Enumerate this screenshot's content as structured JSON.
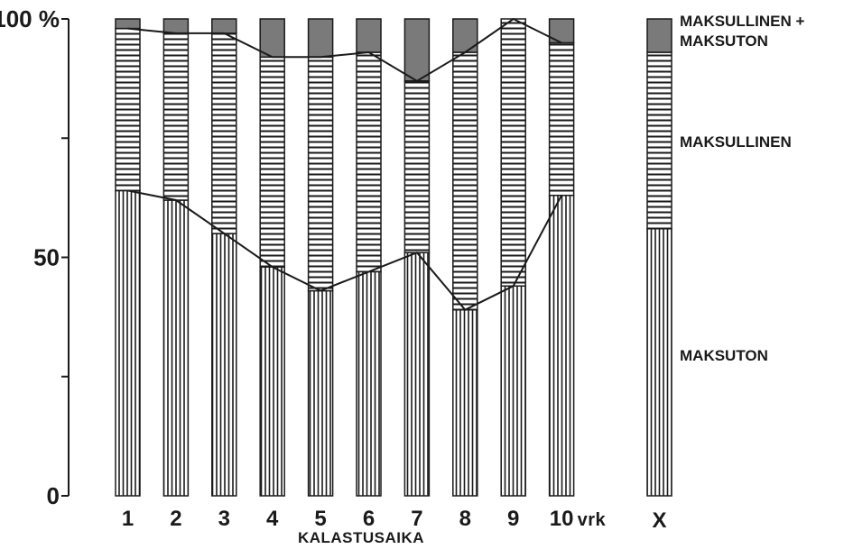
{
  "chart_data": {
    "type": "bar",
    "stacked": true,
    "categories": [
      "1",
      "2",
      "3",
      "4",
      "5",
      "6",
      "7",
      "8",
      "9",
      "10"
    ],
    "unit_suffix": "vrk",
    "summary_bar": {
      "label": "X",
      "values": {
        "maksuton": 56,
        "maksullinen": 37,
        "maksullinen_maksuton": 7
      }
    },
    "series": [
      {
        "key": "maksuton",
        "name": "MAKSUTON",
        "pattern": "vertical-lines",
        "values": [
          64,
          62,
          55,
          48,
          43,
          47,
          51,
          39,
          44,
          63
        ]
      },
      {
        "key": "maksullinen",
        "name": "MAKSULLINEN",
        "pattern": "horizontal-lines",
        "values": [
          34,
          35,
          42,
          44,
          49,
          46,
          36,
          54,
          56,
          32
        ]
      },
      {
        "key": "maksullinen_maksuton",
        "name": "MAKSULLINEN + MAKSUTON",
        "pattern": "solid-gray",
        "values": [
          2,
          3,
          3,
          8,
          8,
          7,
          13,
          7,
          0,
          5
        ]
      }
    ],
    "legend": {
      "position": "right",
      "entries": [
        {
          "key": "maksullinen_maksuton",
          "lines": [
            "MAKSULLINEN +",
            "MAKSUTON"
          ]
        },
        {
          "key": "maksullinen",
          "lines": [
            "MAKSULLINEN"
          ]
        },
        {
          "key": "maksuton",
          "lines": [
            "MAKSUTON"
          ]
        }
      ]
    },
    "y_axis": {
      "ylim": [
        0,
        100
      ],
      "ticks": [
        0,
        25,
        50,
        75,
        100
      ],
      "tick_labels": {
        "0": "0",
        "50": "50",
        "100": "100 %"
      }
    },
    "xlabel": "KALASTUSAIKA",
    "ylabel": "",
    "title": "",
    "grid": false,
    "colors": {
      "ink": "#1a1a1a",
      "gray_fill": "#7a7a7a",
      "background": "#ffffff"
    }
  }
}
